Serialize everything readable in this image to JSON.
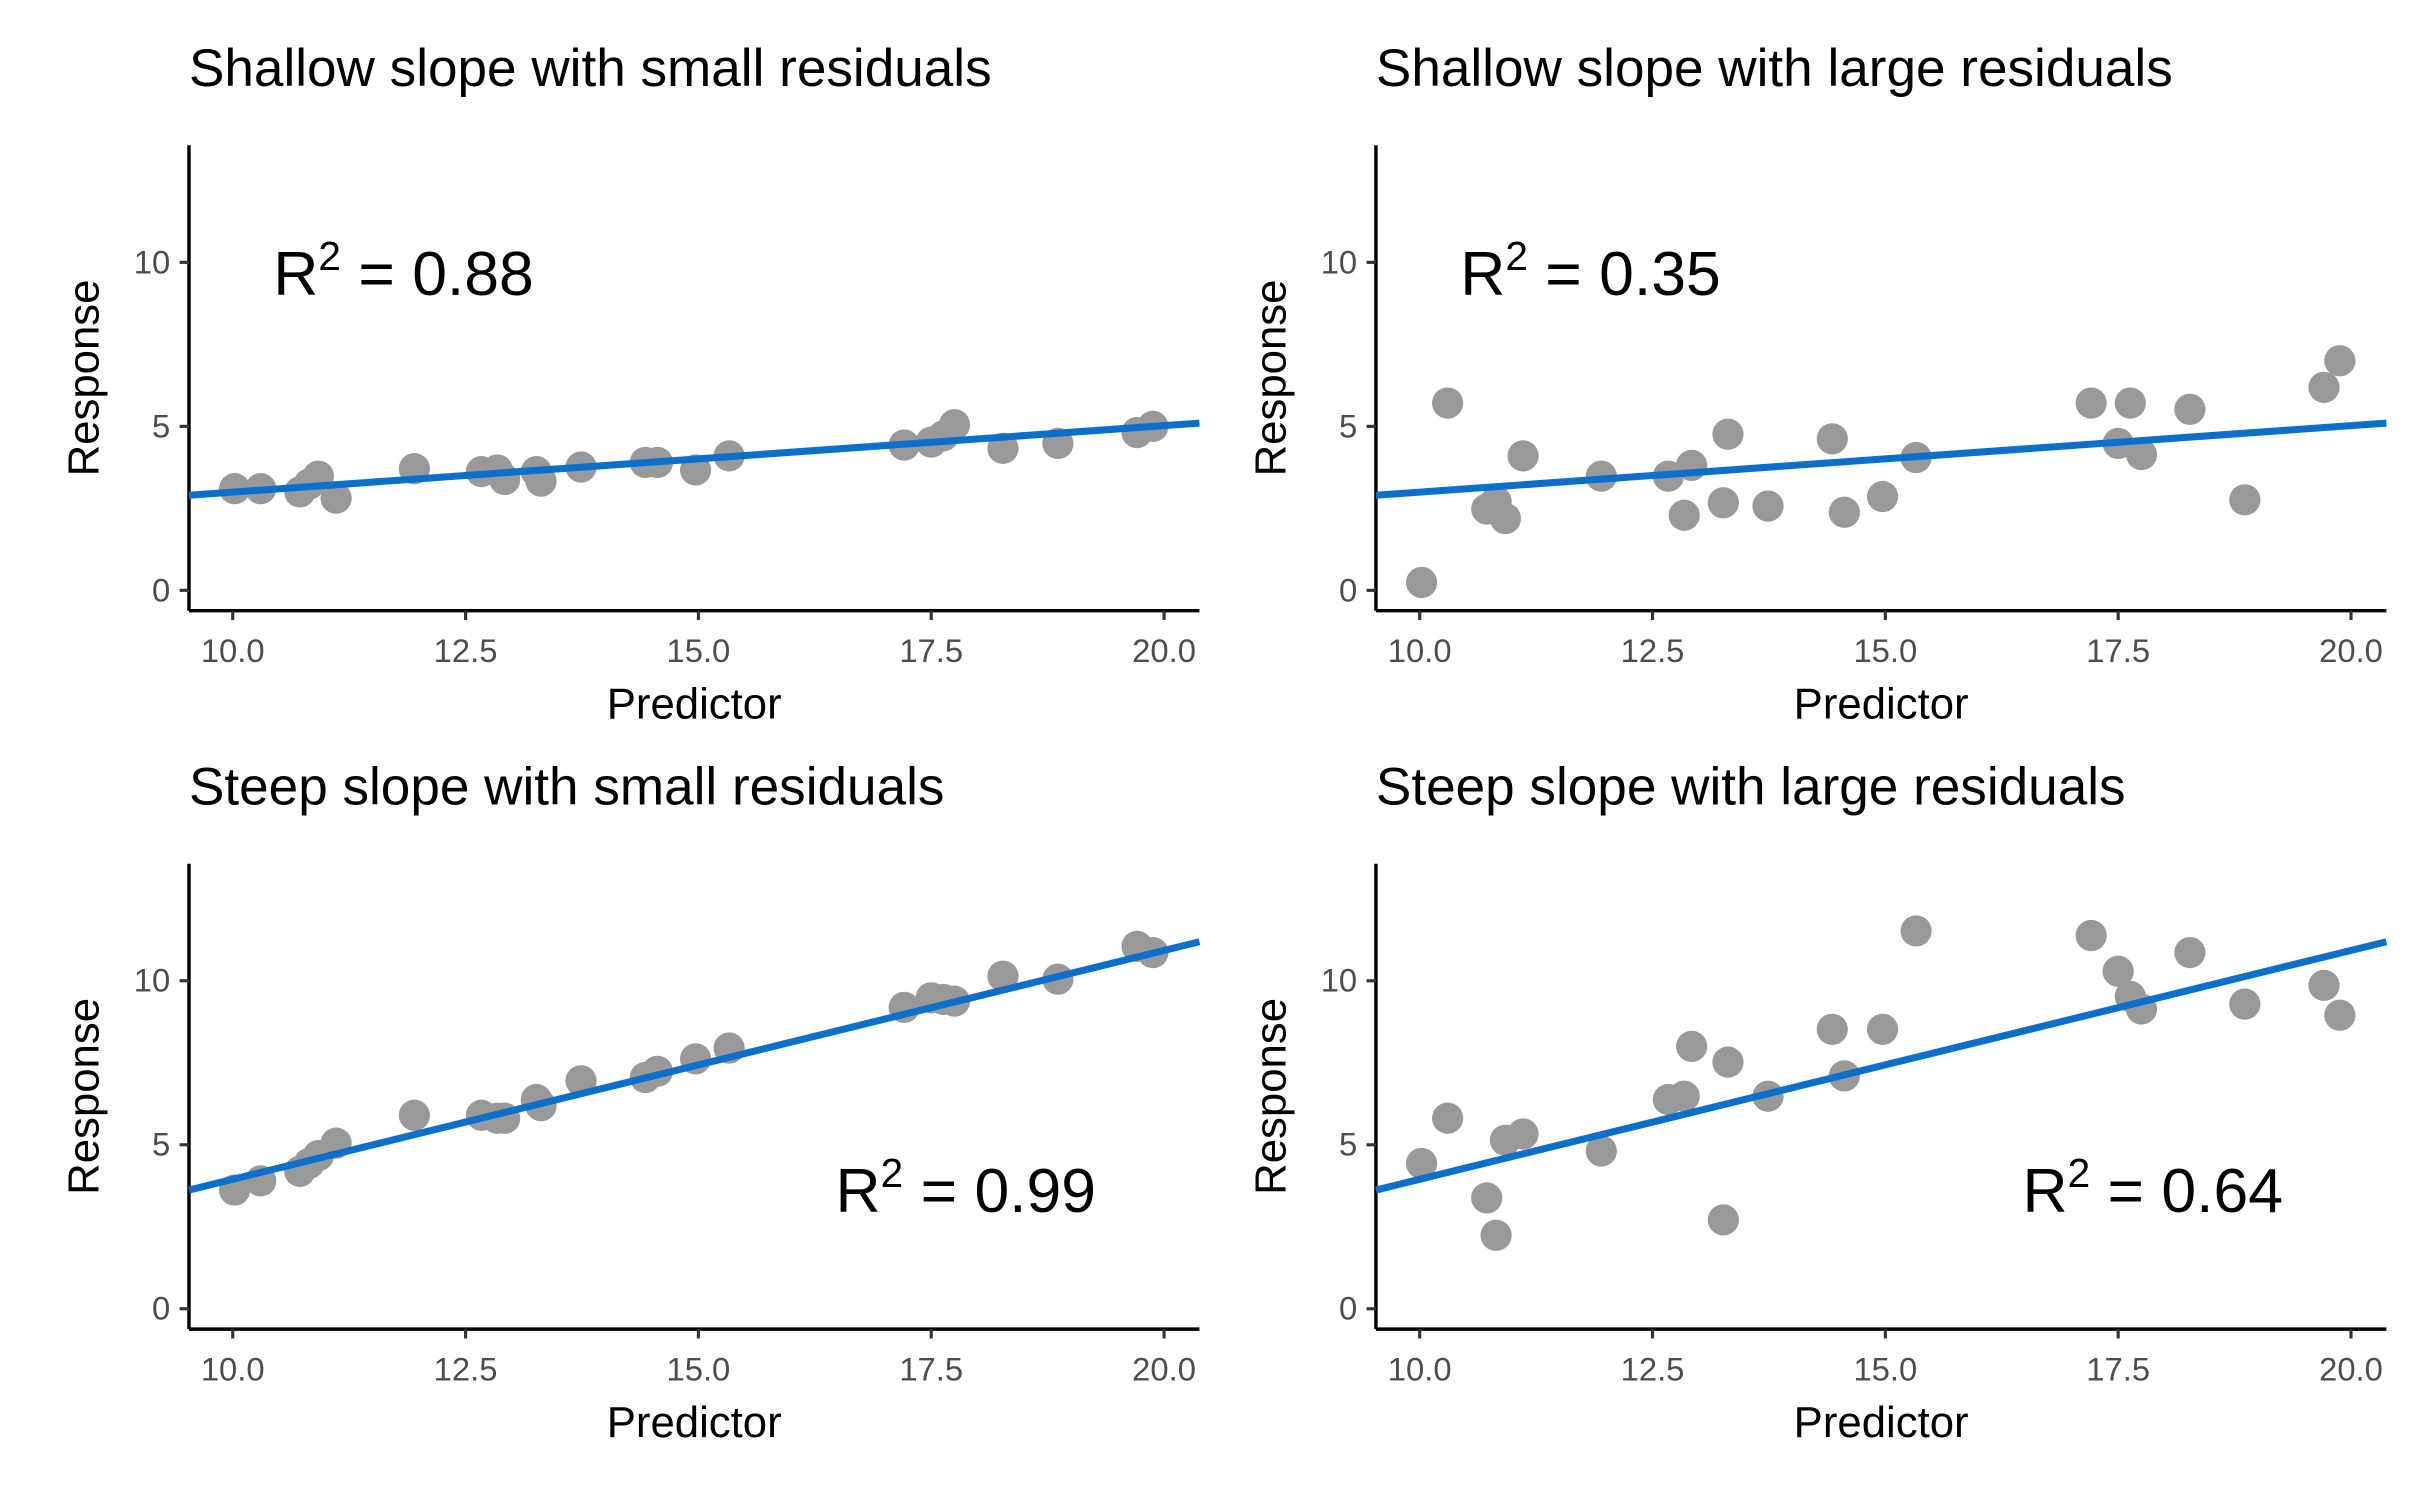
{
  "chart_data": [
    {
      "type": "scatter",
      "title": "Shallow slope with small residuals",
      "x_label": "Predictor",
      "y_label": "Response",
      "annotation": {
        "base": "R",
        "sup": "2",
        "text": " = 0.88"
      },
      "annotation_corner": "top-left",
      "xlim": [
        9.53,
        20.38
      ],
      "ylim": [
        -0.62,
        13.57
      ],
      "xticks": [
        {
          "value": 10,
          "label": "10.0"
        },
        12.5,
        {
          "value": 15,
          "label": "15.0"
        },
        17.5,
        {
          "value": 20,
          "label": "20.0"
        }
      ],
      "yticks": [
        0,
        5,
        10
      ],
      "point_color": "#999999",
      "x": [
        10.02,
        10.3,
        10.72,
        10.82,
        10.92,
        11.11,
        11.95,
        12.67,
        12.84,
        12.92,
        13.26,
        13.31,
        13.74,
        14.43,
        14.56,
        14.97,
        15.33,
        17.21,
        17.5,
        17.63,
        17.75,
        18.27,
        18.86,
        19.71,
        19.88
      ],
      "y": [
        3.1,
        3.1,
        3.0,
        3.24,
        3.48,
        2.81,
        3.71,
        3.62,
        3.67,
        3.38,
        3.62,
        3.33,
        3.76,
        3.9,
        3.9,
        3.67,
        4.1,
        4.43,
        4.52,
        4.71,
        5.05,
        4.33,
        4.48,
        4.81,
        5.0
      ],
      "fit": {
        "color": "#0b6fcc",
        "x": [
          9.53,
          20.38
        ],
        "y": [
          2.9,
          5.1
        ]
      }
    },
    {
      "type": "scatter",
      "title": "Shallow slope with large residuals",
      "x_label": "Predictor",
      "y_label": "Response",
      "annotation": {
        "base": "R",
        "sup": "2",
        "text": " = 0.35"
      },
      "annotation_corner": "top-left",
      "xlim": [
        9.53,
        20.38
      ],
      "ylim": [
        -0.62,
        13.57
      ],
      "xticks": [
        {
          "value": 10,
          "label": "10.0"
        },
        12.5,
        {
          "value": 15,
          "label": "15.0"
        },
        17.5,
        {
          "value": 20,
          "label": "20.0"
        }
      ],
      "yticks": [
        0,
        5,
        10
      ],
      "point_color": "#999999",
      "x": [
        10.02,
        10.3,
        10.72,
        10.82,
        10.92,
        11.11,
        11.95,
        12.67,
        12.84,
        12.92,
        13.26,
        13.31,
        13.74,
        14.43,
        14.56,
        14.97,
        15.33,
        17.21,
        17.5,
        17.63,
        17.75,
        18.27,
        18.86,
        19.71,
        19.88
      ],
      "y": [
        0.24,
        5.71,
        2.48,
        2.71,
        2.19,
        4.1,
        3.48,
        3.48,
        2.29,
        3.81,
        2.67,
        4.76,
        2.57,
        4.62,
        2.38,
        2.86,
        4.05,
        5.71,
        4.48,
        5.71,
        4.14,
        5.52,
        2.76,
        6.19,
        7.0
      ],
      "fit": {
        "color": "#0b6fcc",
        "x": [
          9.53,
          20.38
        ],
        "y": [
          2.9,
          5.1
        ]
      }
    },
    {
      "type": "scatter",
      "title": "Steep slope with small residuals",
      "x_label": "Predictor",
      "y_label": "Response",
      "annotation": {
        "base": "R",
        "sup": "2",
        "text": " = 0.99"
      },
      "annotation_corner": "bottom-right",
      "xlim": [
        9.53,
        20.38
      ],
      "ylim": [
        -0.62,
        13.57
      ],
      "xticks": [
        {
          "value": 10,
          "label": "10.0"
        },
        12.5,
        {
          "value": 15,
          "label": "15.0"
        },
        17.5,
        {
          "value": 20,
          "label": "20.0"
        }
      ],
      "yticks": [
        0,
        5,
        10
      ],
      "point_color": "#999999",
      "x": [
        10.02,
        10.3,
        10.72,
        10.82,
        10.92,
        11.11,
        11.95,
        12.67,
        12.84,
        12.92,
        13.26,
        13.31,
        13.74,
        14.43,
        14.56,
        14.97,
        15.33,
        17.21,
        17.5,
        17.63,
        17.75,
        18.27,
        18.86,
        19.71,
        19.88
      ],
      "y": [
        3.62,
        3.9,
        4.19,
        4.43,
        4.67,
        5.05,
        5.9,
        5.9,
        5.81,
        5.81,
        6.38,
        6.19,
        6.95,
        7.05,
        7.24,
        7.62,
        7.95,
        9.19,
        9.48,
        9.43,
        9.38,
        10.14,
        10.05,
        11.05,
        10.86
      ],
      "fit": {
        "color": "#0b6fcc",
        "x": [
          9.53,
          20.38
        ],
        "y": [
          3.62,
          11.19
        ]
      }
    },
    {
      "type": "scatter",
      "title": "Steep slope with large residuals",
      "x_label": "Predictor",
      "y_label": "Response",
      "annotation": {
        "base": "R",
        "sup": "2",
        "text": " = 0.64"
      },
      "annotation_corner": "bottom-right",
      "xlim": [
        9.53,
        20.38
      ],
      "ylim": [
        -0.62,
        13.57
      ],
      "xticks": [
        {
          "value": 10,
          "label": "10.0"
        },
        12.5,
        {
          "value": 15,
          "label": "15.0"
        },
        17.5,
        {
          "value": 20,
          "label": "20.0"
        }
      ],
      "yticks": [
        0,
        5,
        10
      ],
      "point_color": "#999999",
      "x": [
        10.02,
        10.3,
        10.72,
        10.82,
        10.92,
        11.11,
        11.95,
        12.67,
        12.84,
        12.92,
        13.26,
        13.31,
        13.74,
        14.43,
        14.56,
        14.97,
        15.33,
        17.21,
        17.5,
        17.63,
        17.75,
        18.27,
        18.86,
        19.71,
        19.88
      ],
      "y": [
        4.43,
        5.81,
        3.38,
        2.24,
        5.14,
        5.33,
        4.81,
        6.38,
        6.48,
        8.0,
        2.71,
        7.52,
        6.48,
        8.52,
        7.1,
        8.52,
        11.52,
        11.38,
        10.29,
        9.52,
        9.14,
        10.86,
        9.29,
        9.86,
        8.95
      ],
      "fit": {
        "color": "#0b6fcc",
        "x": [
          9.53,
          20.38
        ],
        "y": [
          3.62,
          11.19
        ]
      }
    }
  ]
}
